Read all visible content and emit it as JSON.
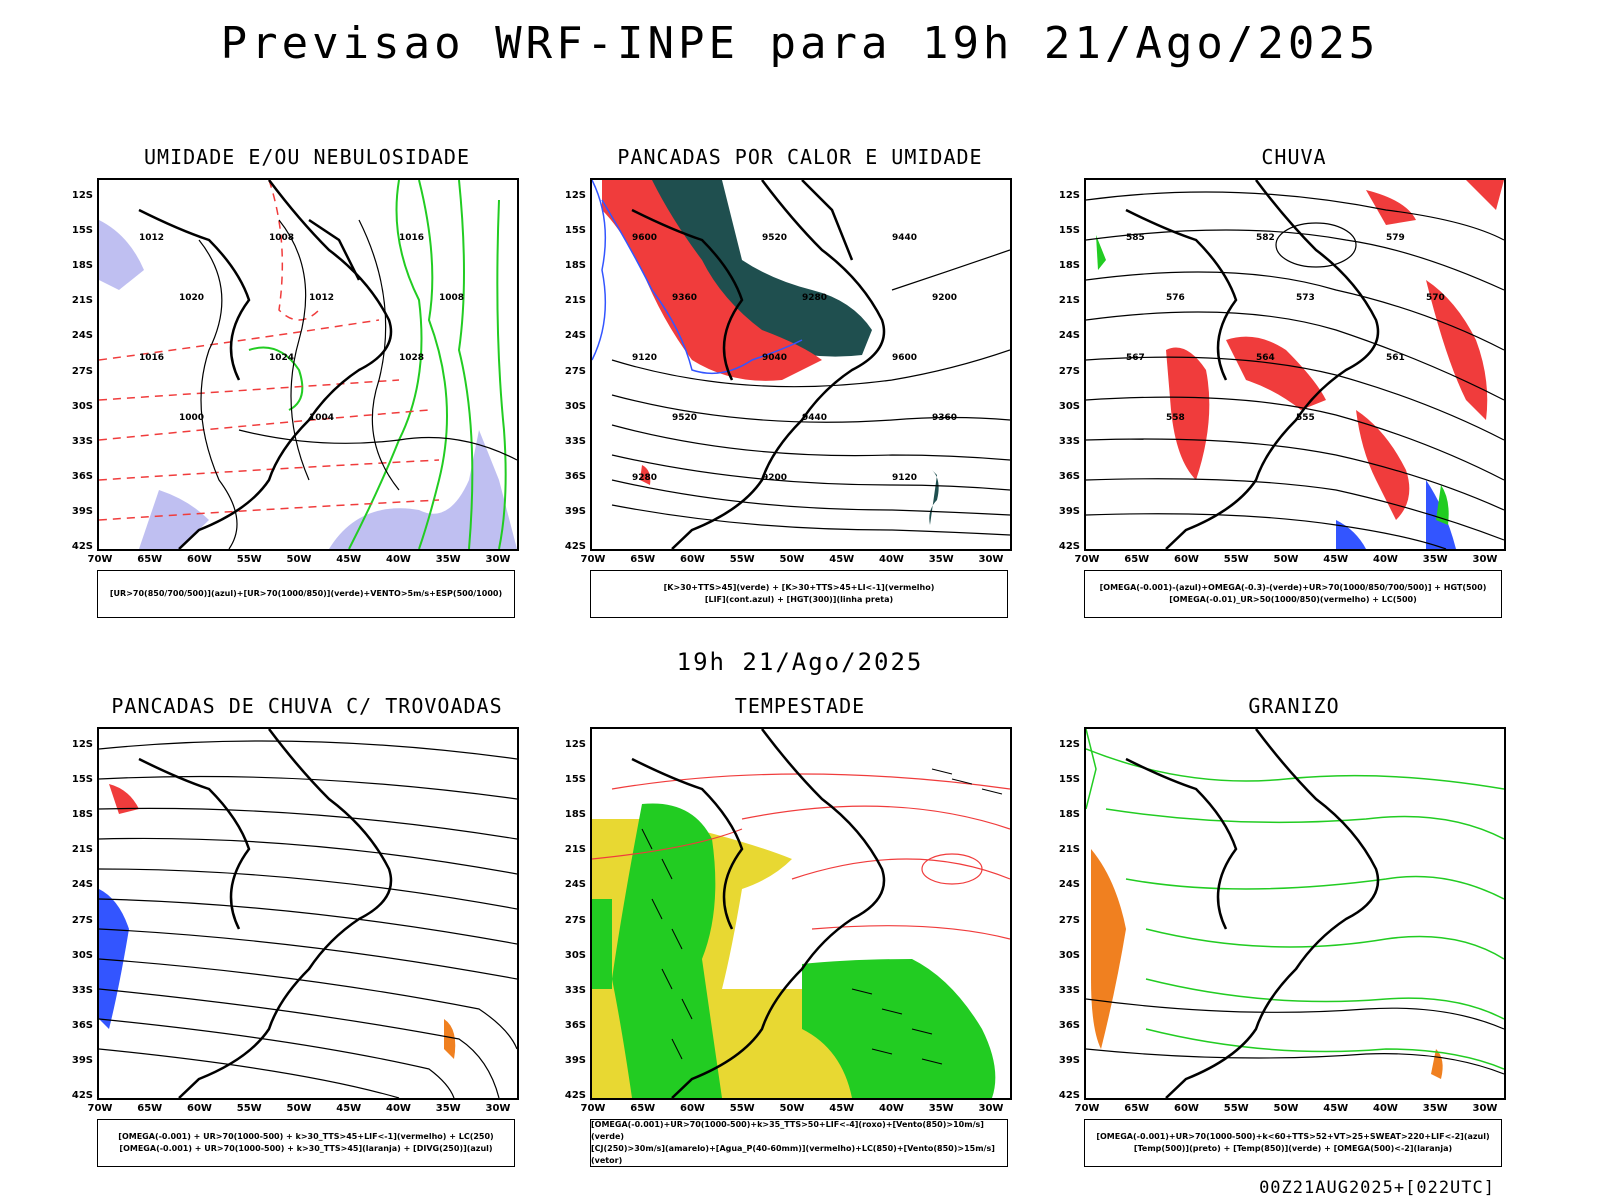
{
  "title": "Previsao WRF-INPE  para 19h 21/Ago/2025",
  "mid_title": "19h 21/Ago/2025",
  "footer": "00Z21AUG2025+[022UTC]",
  "lat_labels": [
    "12S",
    "15S",
    "18S",
    "21S",
    "24S",
    "27S",
    "30S",
    "33S",
    "36S",
    "39S",
    "42S"
  ],
  "lon_labels": [
    "70W",
    "65W",
    "60W",
    "55W",
    "50W",
    "45W",
    "40W",
    "35W",
    "30W"
  ],
  "colors": {
    "red": "#f03c3c",
    "green": "#22cc22",
    "blue": "#3355ff",
    "yellow": "#e8d832",
    "darkteal": "#1f4f4f",
    "orange": "#f08020",
    "lavender": "#b8b8f0"
  },
  "panels": [
    {
      "id": "umidade",
      "title": "UMIDADE E/OU NEBULOSIDADE",
      "legend": [
        "[UR>70(850/700/500)](azul)+[UR>70(1000/850)](verde)+VENTO>5m/s+ESP(500/1000)"
      ]
    },
    {
      "id": "pancadas-calor",
      "title": "PANCADAS POR CALOR E UMIDADE",
      "legend": [
        "[K>30+TTS>45](verde) + [K>30+TTS>45+LI<-1](vermelho)",
        "[LIF](cont.azul) + [HGT(300)](linha preta)"
      ]
    },
    {
      "id": "chuva",
      "title": "CHUVA",
      "legend": [
        "[OMEGA(-0.001)-(azul)+OMEGA(-0.3)-(verde)+UR>70(1000/850/700/500)] + HGT(500)",
        "[OMEGA(-0.01)_UR>50(1000/850)(vermelho) + LC(500)"
      ]
    },
    {
      "id": "trovoadas",
      "title": "PANCADAS DE CHUVA C/ TROVOADAS",
      "legend": [
        "[OMEGA(-0.001) + UR>70(1000-500) + k>30_TTS>45+LIF<-1](vermelho) + LC(250)",
        "[OMEGA(-0.001) + UR>70(1000-500) + k>30_TTS>45](laranja) + [DIVG(250)](azul)"
      ]
    },
    {
      "id": "tempestade",
      "title": "TEMPESTADE",
      "legend": [
        "[OMEGA(-0.001)+UR>70(1000-500)+k>35_TTS>50+LIF<-4](roxo)+[Vento(850)>10m/s](verde)",
        "[CJ(250)>30m/s](amarelo)+[Agua_P(40-60mm)](vermelho)+LC(850)+[Vento(850)>15m/s](vetor)"
      ]
    },
    {
      "id": "granizo",
      "title": "GRANIZO",
      "legend": [
        "[OMEGA(-0.001)+UR>70(1000-500)+k<60+TTS>52+VT>25+SWEAT>220+LIF<-2](azul)",
        "[Temp(500)](preto) + [Temp(850)](verde) + [OMEGA(500)<-2](laranja)"
      ]
    }
  ],
  "contour_labels": {
    "pancadas-calor": [
      "9600",
      "9520",
      "9440",
      "9360",
      "9280",
      "9200",
      "9120",
      "9040",
      "9600",
      "9520",
      "9440",
      "9360",
      "9280",
      "9200",
      "9120"
    ],
    "chuva": [
      "585",
      "582",
      "579",
      "576",
      "573",
      "570",
      "567",
      "564",
      "561",
      "558",
      "555"
    ],
    "umidade": [
      "1012",
      "1008",
      "1016",
      "1020",
      "1012",
      "1008",
      "1016",
      "1024",
      "1028",
      "1000",
      "1004"
    ]
  }
}
